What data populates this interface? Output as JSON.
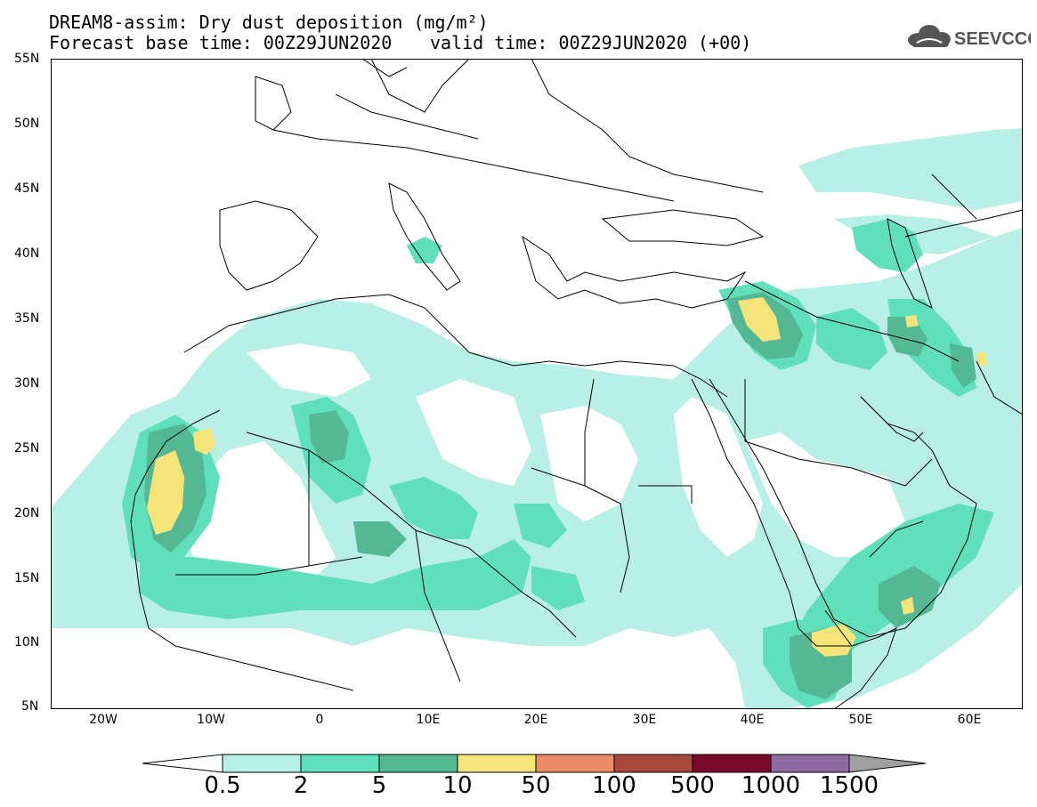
{
  "header": {
    "title_line1": "DREAM8-assim: Dry dust deposition (mg/m²)",
    "title_line2_left": "Forecast base time: 00Z29JUN2020",
    "title_line2_right": "valid time: 00Z29JUN2020 (+00)"
  },
  "logo": {
    "text": "SEEVCCC",
    "icon": "cloud-icon"
  },
  "map": {
    "lat_labels": [
      "55N",
      "50N",
      "45N",
      "40N",
      "35N",
      "30N",
      "25N",
      "20N",
      "15N",
      "10N",
      "5N"
    ],
    "lon_labels": [
      "20W",
      "10W",
      "0",
      "10E",
      "20E",
      "30E",
      "40E",
      "50E",
      "60E"
    ]
  },
  "colorbar": {
    "labels": [
      "0.5",
      "2",
      "5",
      "10",
      "50",
      "100",
      "500",
      "1000",
      "1500"
    ],
    "colors": [
      "#ffffff",
      "#b8efe6",
      "#5fe0bb",
      "#55b895",
      "#f5e47a",
      "#eb8c66",
      "#a8473c",
      "#7a0a2c",
      "#8e6aa0",
      "#a0a0a0"
    ]
  },
  "palette": {
    "land": "#ffffff",
    "border": "#000000"
  }
}
